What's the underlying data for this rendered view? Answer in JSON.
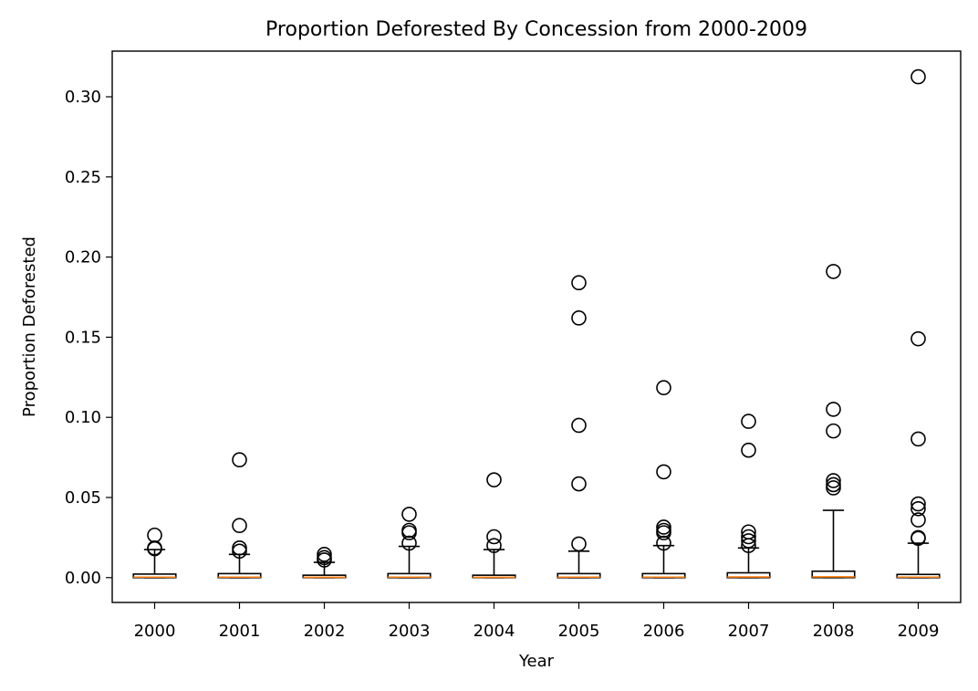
{
  "chart_data": {
    "type": "box",
    "title": "Proportion Deforested By Concession from 2000-2009",
    "xlabel": "Year",
    "ylabel": "Proportion Deforested",
    "ylim": [
      -0.0155,
      0.3285
    ],
    "yticks": [
      0.0,
      0.05,
      0.1,
      0.15,
      0.2,
      0.25,
      0.3
    ],
    "ytick_labels": [
      "0.00",
      "0.05",
      "0.10",
      "0.15",
      "0.20",
      "0.25",
      "0.30"
    ],
    "grid": false,
    "colors": {
      "box": "#000000",
      "median": "#ff7f0e",
      "flier": "#000000"
    },
    "categories": [
      "2000",
      "2001",
      "2002",
      "2003",
      "2004",
      "2005",
      "2006",
      "2007",
      "2008",
      "2009"
    ],
    "boxes": [
      {
        "label": "2000",
        "whislo": 0.0,
        "q1": 0.0,
        "med": 0.0003,
        "q3": 0.0022,
        "whishi": 0.0175,
        "fliers": [
          0.0265,
          0.0185,
          0.018
        ]
      },
      {
        "label": "2001",
        "whislo": 0.0,
        "q1": 0.0,
        "med": 0.0003,
        "q3": 0.0025,
        "whishi": 0.0145,
        "fliers": [
          0.0735,
          0.0325,
          0.0185,
          0.0165
        ]
      },
      {
        "label": "2002",
        "whislo": 0.0,
        "q1": 0.0,
        "med": 0.0002,
        "q3": 0.0015,
        "whishi": 0.0095,
        "fliers": [
          0.0145,
          0.0125,
          0.011
        ]
      },
      {
        "label": "2003",
        "whislo": 0.0,
        "q1": 0.0,
        "med": 0.0003,
        "q3": 0.0025,
        "whishi": 0.0195,
        "fliers": [
          0.0395,
          0.0295,
          0.028,
          0.0215
        ]
      },
      {
        "label": "2004",
        "whislo": 0.0,
        "q1": 0.0,
        "med": 0.0002,
        "q3": 0.0015,
        "whishi": 0.0175,
        "fliers": [
          0.061,
          0.0255,
          0.02
        ]
      },
      {
        "label": "2005",
        "whislo": 0.0,
        "q1": 0.0,
        "med": 0.0003,
        "q3": 0.0025,
        "whishi": 0.0165,
        "fliers": [
          0.184,
          0.162,
          0.095,
          0.0585,
          0.021
        ]
      },
      {
        "label": "2006",
        "whislo": 0.0,
        "q1": 0.0,
        "med": 0.0003,
        "q3": 0.0025,
        "whishi": 0.02,
        "fliers": [
          0.1185,
          0.066,
          0.0315,
          0.0295,
          0.028,
          0.0215
        ]
      },
      {
        "label": "2007",
        "whislo": 0.0,
        "q1": 0.0,
        "med": 0.0004,
        "q3": 0.003,
        "whishi": 0.0185,
        "fliers": [
          0.0975,
          0.0795,
          0.0285,
          0.0255,
          0.023,
          0.02
        ]
      },
      {
        "label": "2008",
        "whislo": 0.0,
        "q1": 0.0,
        "med": 0.0005,
        "q3": 0.004,
        "whishi": 0.042,
        "fliers": [
          0.191,
          0.105,
          0.0915,
          0.0605,
          0.058,
          0.056
        ]
      },
      {
        "label": "2009",
        "whislo": 0.0,
        "q1": 0.0,
        "med": 0.0003,
        "q3": 0.002,
        "whishi": 0.0215,
        "fliers": [
          0.3125,
          0.149,
          0.0865,
          0.046,
          0.043,
          0.036,
          0.025,
          0.0245
        ]
      }
    ]
  }
}
